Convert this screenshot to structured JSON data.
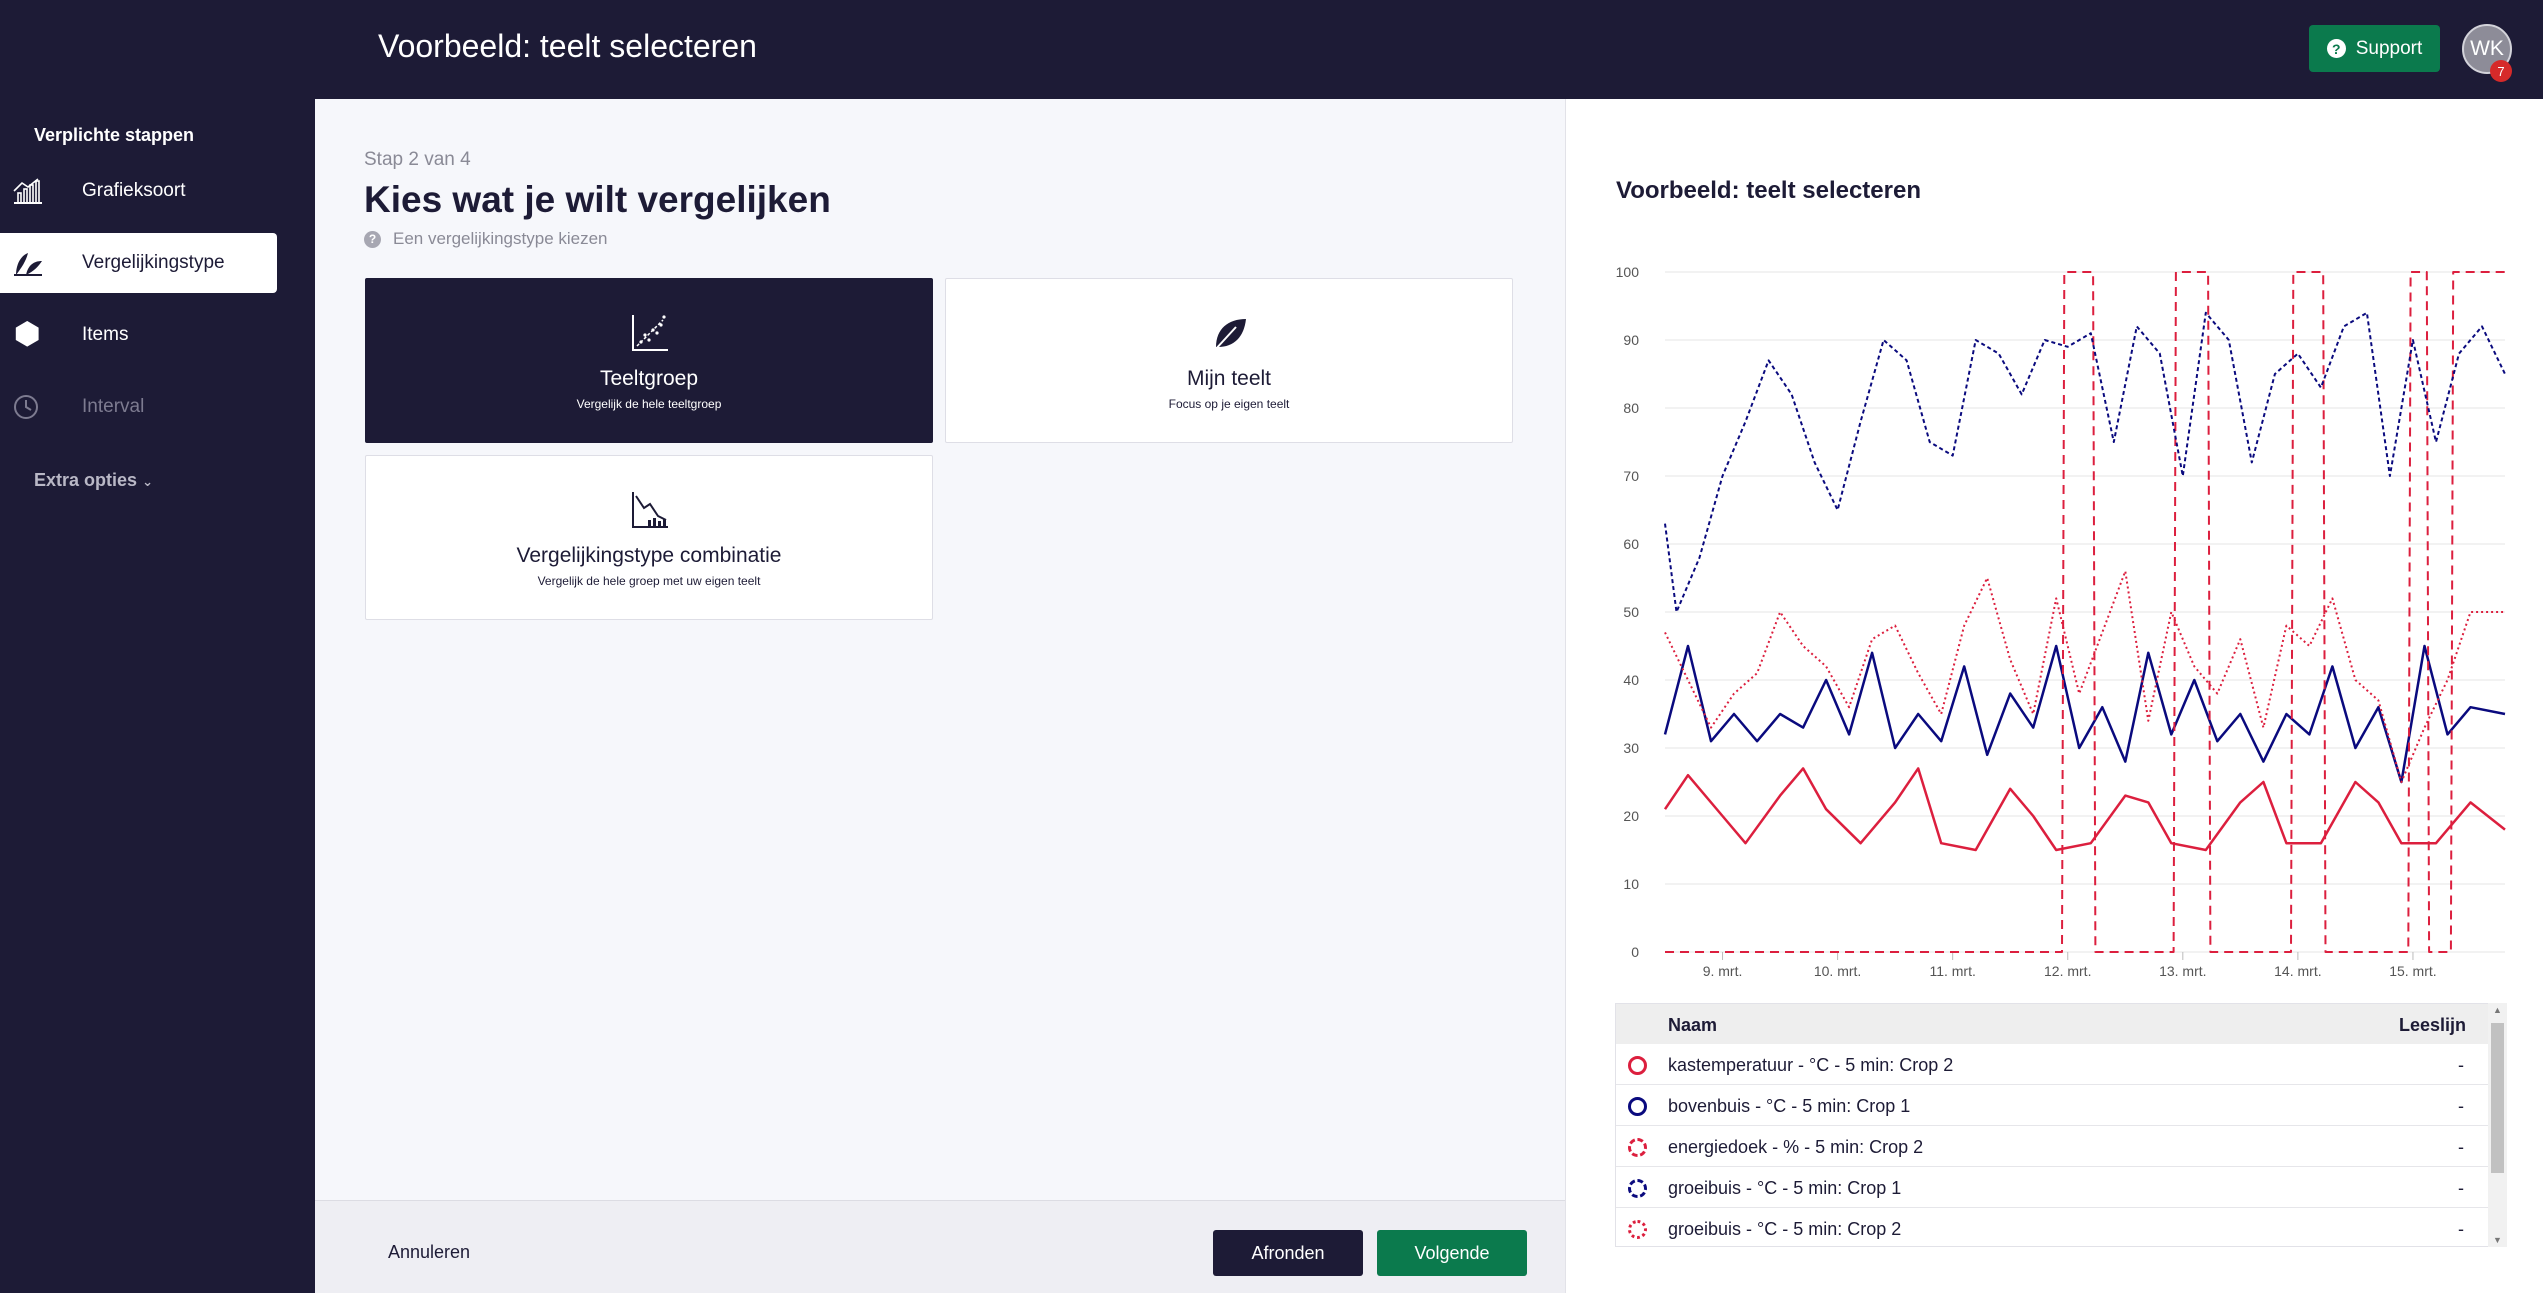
{
  "header": {
    "title": "Voorbeeld: teelt selecteren",
    "support_label": "Support",
    "avatar_initials": "WK",
    "notification_count": "7"
  },
  "sidebar": {
    "section_title": "Verplichte stappen",
    "items": [
      {
        "label": "Grafieksoort",
        "icon": "bar-chart-icon",
        "state": "normal"
      },
      {
        "label": "Vergelijkingstype",
        "icon": "plants-icon",
        "state": "active"
      },
      {
        "label": "Items",
        "icon": "hexagon-icon",
        "state": "normal"
      },
      {
        "label": "Interval",
        "icon": "clock-icon",
        "state": "disabled"
      }
    ],
    "extra_label": "Extra opties"
  },
  "main": {
    "step": "Stap 2 van 4",
    "heading": "Kies wat je wilt vergelijken",
    "hint": "Een vergelijkingstype kiezen",
    "cards": [
      {
        "title": "Teeltgroep",
        "subtitle": "Vergelijk de hele teeltgroep",
        "icon": "scatter-chart-icon",
        "selected": true
      },
      {
        "title": "Mijn teelt",
        "subtitle": "Focus op je eigen teelt",
        "icon": "leaf-icon",
        "selected": false
      },
      {
        "title": "Vergelijkingstype combinatie",
        "subtitle": "Vergelijk de hele groep met uw eigen teelt",
        "icon": "combo-chart-icon",
        "selected": false
      }
    ]
  },
  "footer": {
    "cancel_label": "Annuleren",
    "finish_label": "Afronden",
    "next_label": "Volgende"
  },
  "preview": {
    "title": "Voorbeeld: teelt selecteren",
    "legend": {
      "col_name": "Naam",
      "col_value": "Leeslijn",
      "rows": [
        {
          "name": "kastemperatuur - °C - 5 min: Crop 2",
          "value": "-",
          "color": "#dc1f3e",
          "style": "solid"
        },
        {
          "name": "bovenbuis - °C - 5 min: Crop 1",
          "value": "-",
          "color": "#0a0a7e",
          "style": "solid"
        },
        {
          "name": "energiedoek - % - 5 min: Crop 2",
          "value": "-",
          "color": "#dc1f3e",
          "style": "dashed"
        },
        {
          "name": "groeibuis - °C - 5 min: Crop 1",
          "value": "-",
          "color": "#0a0a7e",
          "style": "dashed"
        },
        {
          "name": "groeibuis - °C - 5 min: Crop 2",
          "value": "-",
          "color": "#dc1f3e",
          "style": "dotted"
        }
      ]
    }
  },
  "chart_data": {
    "type": "line",
    "ylim": [
      0,
      100
    ],
    "yticks": [
      0,
      10,
      20,
      30,
      40,
      50,
      60,
      70,
      80,
      90,
      100
    ],
    "xlim": [
      8.5,
      15.8
    ],
    "xticks": [
      {
        "x": 9,
        "label": "9. mrt."
      },
      {
        "x": 10,
        "label": "10. mrt."
      },
      {
        "x": 11,
        "label": "11. mrt."
      },
      {
        "x": 12,
        "label": "12. mrt."
      },
      {
        "x": 13,
        "label": "13. mrt."
      },
      {
        "x": 14,
        "label": "14. mrt."
      },
      {
        "x": 15,
        "label": "15. mrt."
      }
    ],
    "grid": true,
    "series": [
      {
        "name": "kastemperatuur - °C - 5 min: Crop 2",
        "color": "#dc1f3e",
        "dash": "",
        "width": 2.5,
        "x": [
          8.5,
          8.7,
          9.0,
          9.2,
          9.5,
          9.7,
          9.9,
          10.2,
          10.5,
          10.7,
          10.9,
          11.2,
          11.5,
          11.7,
          11.9,
          12.2,
          12.5,
          12.7,
          12.9,
          13.2,
          13.5,
          13.7,
          13.9,
          14.2,
          14.5,
          14.7,
          14.9,
          15.2,
          15.5,
          15.8
        ],
        "y": [
          21,
          26,
          20,
          16,
          23,
          27,
          21,
          16,
          22,
          27,
          16,
          15,
          24,
          20,
          15,
          16,
          23,
          22,
          16,
          15,
          22,
          25,
          16,
          16,
          25,
          22,
          16,
          16,
          22,
          18
        ]
      },
      {
        "name": "bovenbuis - °C - 5 min: Crop 1",
        "color": "#0a0a7e",
        "dash": "",
        "width": 2.5,
        "x": [
          8.5,
          8.7,
          8.9,
          9.1,
          9.3,
          9.5,
          9.7,
          9.9,
          10.1,
          10.3,
          10.5,
          10.7,
          10.9,
          11.1,
          11.3,
          11.5,
          11.7,
          11.9,
          12.1,
          12.3,
          12.5,
          12.7,
          12.9,
          13.1,
          13.3,
          13.5,
          13.7,
          13.9,
          14.1,
          14.3,
          14.5,
          14.7,
          14.9,
          15.1,
          15.3,
          15.5,
          15.8
        ],
        "y": [
          32,
          45,
          31,
          35,
          31,
          35,
          33,
          40,
          32,
          44,
          30,
          35,
          31,
          42,
          29,
          38,
          33,
          45,
          30,
          36,
          28,
          44,
          32,
          40,
          31,
          35,
          28,
          35,
          32,
          42,
          30,
          36,
          25,
          45,
          32,
          36,
          35
        ]
      },
      {
        "name": "energiedoek - % - 5 min: Crop 2",
        "color": "#dc1f3e",
        "dash": "9,6",
        "width": 2,
        "x": [
          8.5,
          11.95,
          11.97,
          12.22,
          12.24,
          12.92,
          12.94,
          13.22,
          13.24,
          13.94,
          13.96,
          14.22,
          14.24,
          14.96,
          14.98,
          15.12,
          15.14,
          15.33,
          15.35,
          15.8
        ],
        "y": [
          0,
          0,
          100,
          100,
          0,
          0,
          100,
          100,
          0,
          0,
          100,
          100,
          0,
          0,
          100,
          100,
          0,
          0,
          100,
          100
        ]
      },
      {
        "name": "groeibuis - °C - 5 min: Crop 1",
        "color": "#0a0a7e",
        "dash": "4,3",
        "width": 2,
        "x": [
          8.5,
          8.6,
          8.8,
          9.0,
          9.2,
          9.4,
          9.6,
          9.8,
          10.0,
          10.2,
          10.4,
          10.6,
          10.8,
          11.0,
          11.2,
          11.4,
          11.6,
          11.8,
          12.0,
          12.2,
          12.4,
          12.6,
          12.8,
          13.0,
          13.2,
          13.4,
          13.6,
          13.8,
          14.0,
          14.2,
          14.4,
          14.6,
          14.8,
          15.0,
          15.2,
          15.4,
          15.6,
          15.8
        ],
        "y": [
          63,
          50,
          58,
          70,
          78,
          87,
          82,
          72,
          65,
          78,
          90,
          87,
          75,
          73,
          90,
          88,
          82,
          90,
          89,
          91,
          75,
          92,
          88,
          70,
          94,
          90,
          72,
          85,
          88,
          83,
          92,
          94,
          70,
          90,
          75,
          88,
          92,
          85
        ]
      },
      {
        "name": "groeibuis - °C - 5 min: Crop 2",
        "color": "#dc1f3e",
        "dash": "2,3",
        "width": 2,
        "x": [
          8.5,
          8.7,
          8.9,
          9.1,
          9.3,
          9.5,
          9.7,
          9.9,
          10.1,
          10.3,
          10.5,
          10.7,
          10.9,
          11.1,
          11.3,
          11.5,
          11.7,
          11.9,
          12.1,
          12.3,
          12.5,
          12.7,
          12.9,
          13.1,
          13.3,
          13.5,
          13.7,
          13.9,
          14.1,
          14.3,
          14.5,
          14.7,
          14.9,
          15.1,
          15.3,
          15.5,
          15.8
        ],
        "y": [
          47,
          40,
          33,
          38,
          41,
          50,
          45,
          42,
          36,
          46,
          48,
          41,
          35,
          48,
          55,
          43,
          35,
          52,
          38,
          47,
          56,
          34,
          50,
          42,
          38,
          46,
          33,
          48,
          45,
          52,
          40,
          37,
          25,
          33,
          40,
          50,
          50
        ]
      }
    ]
  }
}
